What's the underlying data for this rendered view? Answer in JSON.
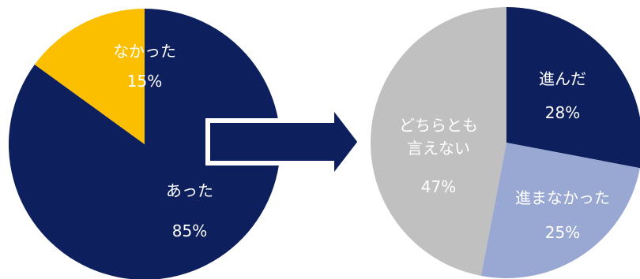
{
  "colors": {
    "navy": "#0d1f5c",
    "yellow": "#fbbf00",
    "gray": "#c0c0c0",
    "periwinkle": "#98a8d2",
    "arrow_fill": "#0d1f5c",
    "arrow_outline": "#ffffff"
  },
  "chart_data": [
    {
      "type": "pie",
      "title": "",
      "slices": [
        {
          "label": "あった",
          "value": 85,
          "value_label": "85%",
          "color": "#0d1f5c"
        },
        {
          "label": "なかった",
          "value": 15,
          "value_label": "15%",
          "color": "#fbbf00"
        }
      ]
    },
    {
      "type": "pie",
      "title": "",
      "slices": [
        {
          "label": "進んだ",
          "value": 28,
          "value_label": "28%",
          "color": "#0d1f5c"
        },
        {
          "label": "進まなかった",
          "value": 25,
          "value_label": "25%",
          "color": "#98a8d2"
        },
        {
          "label": "どちらとも言えない",
          "label_lines": [
            "どちらとも",
            "言えない"
          ],
          "value": 47,
          "value_label": "47%",
          "color": "#c0c0c0"
        }
      ]
    }
  ],
  "connector": {
    "icon": "right-arrow-icon"
  }
}
